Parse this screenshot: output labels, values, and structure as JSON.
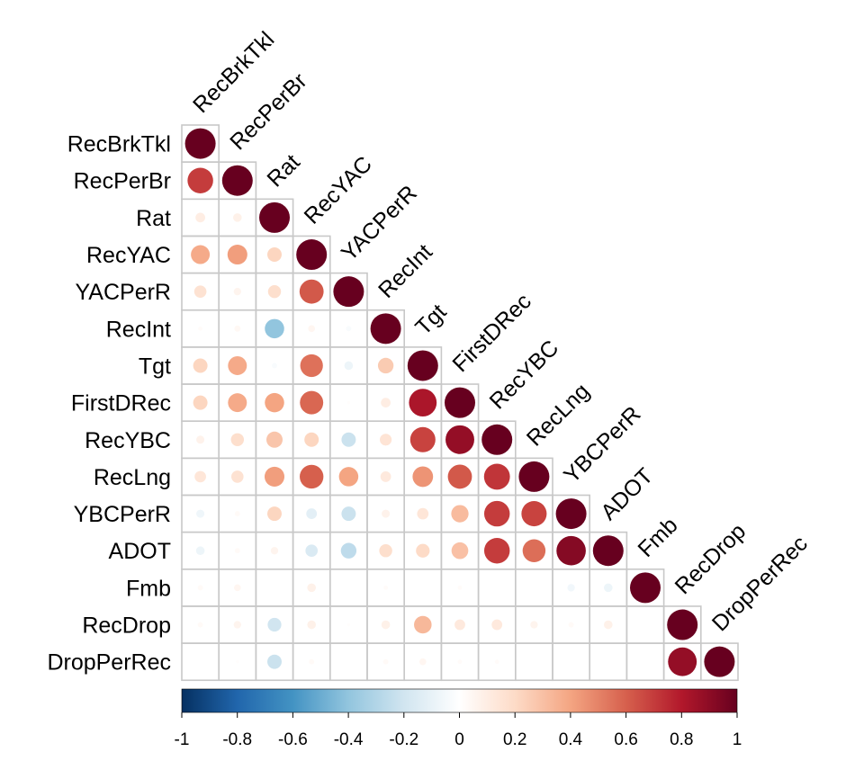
{
  "chart_data": {
    "type": "heatmap",
    "subtype": "correlation-lower-triangle-circles",
    "variables": [
      "RecBrkTkl",
      "RecPerBr",
      "Rat",
      "RecYAC",
      "YACPerR",
      "RecInt",
      "Tgt",
      "FirstDRec",
      "RecYBC",
      "RecLng",
      "YBCPerR",
      "ADOT",
      "Fmb",
      "RecDrop",
      "DropPerRec"
    ],
    "matrix": [
      [
        1.0
      ],
      [
        0.7,
        1.0
      ],
      [
        0.1,
        0.08,
        1.0
      ],
      [
        0.38,
        0.42,
        0.22,
        1.0
      ],
      [
        0.16,
        0.06,
        0.18,
        0.62,
        1.0
      ],
      [
        0.02,
        0.04,
        -0.4,
        0.05,
        -0.03,
        1.0
      ],
      [
        0.22,
        0.38,
        -0.03,
        0.55,
        -0.08,
        0.26,
        1.0
      ],
      [
        0.22,
        0.38,
        0.4,
        0.58,
        0.01,
        0.1,
        0.82,
        1.0
      ],
      [
        0.07,
        0.18,
        0.28,
        0.22,
        -0.22,
        0.15,
        0.68,
        0.88,
        1.0
      ],
      [
        0.14,
        0.16,
        0.42,
        0.6,
        0.4,
        0.12,
        0.45,
        0.62,
        0.72,
        1.0
      ],
      [
        -0.07,
        0.03,
        0.22,
        -0.12,
        -0.22,
        0.07,
        0.14,
        0.32,
        0.7,
        0.68,
        1.0
      ],
      [
        -0.08,
        0.03,
        0.06,
        -0.16,
        -0.26,
        0.18,
        0.2,
        0.3,
        0.7,
        0.56,
        0.92,
        1.0
      ],
      [
        0.03,
        0.05,
        0.0,
        0.08,
        0.0,
        0.02,
        0.0,
        0.02,
        0.0,
        0.0,
        -0.06,
        -0.08,
        1.0
      ],
      [
        0.03,
        0.06,
        -0.2,
        0.08,
        0.01,
        0.08,
        0.33,
        0.12,
        0.12,
        0.06,
        0.03,
        0.08,
        0.0,
        1.0
      ],
      [
        0.0,
        0.01,
        -0.22,
        0.03,
        0.0,
        0.03,
        0.05,
        0.02,
        0.02,
        0.0,
        0.0,
        0.0,
        0.0,
        0.88,
        1.0
      ]
    ],
    "colorbar": {
      "ticks": [
        "-1",
        "-0.8",
        "-0.6",
        "-0.4",
        "-0.2",
        "0",
        "0.2",
        "0.4",
        "0.6",
        "0.8",
        "1"
      ],
      "tick_values": [
        -1,
        -0.8,
        -0.6,
        -0.4,
        -0.2,
        0,
        0.2,
        0.4,
        0.6,
        0.8,
        1
      ],
      "range": [
        -1,
        1
      ],
      "placement": "bottom",
      "palette": [
        "#053061",
        "#2166ac",
        "#4393c3",
        "#92c5de",
        "#d1e5f0",
        "#ffffff",
        "#fddbc7",
        "#f4a582",
        "#d6604d",
        "#b2182b",
        "#67001f"
      ]
    },
    "grid": true,
    "cell_border_color": "#c8c8c8"
  }
}
